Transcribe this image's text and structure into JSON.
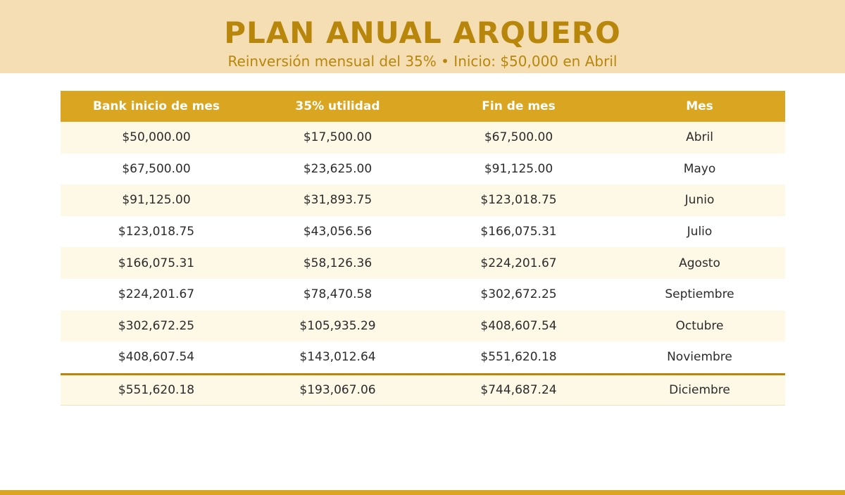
{
  "header": {
    "title": "PLAN ANUAL ARQUERO",
    "subtitle": "Reinversión mensual del 35%  •  Inicio: $50,000 en Abril"
  },
  "colors": {
    "header_bg": "#f5deb3",
    "accent": "#daa520",
    "accent_dark": "#b8860b",
    "row_alt": "#fef8e6"
  },
  "table": {
    "columns": [
      "Bank inicio de mes",
      "35% utilidad",
      "Fin de mes",
      "Mes"
    ],
    "rows": [
      [
        "$50,000.00",
        "$17,500.00",
        "$67,500.00",
        "Abril"
      ],
      [
        "$67,500.00",
        "$23,625.00",
        "$91,125.00",
        "Mayo"
      ],
      [
        "$91,125.00",
        "$31,893.75",
        "$123,018.75",
        "Junio"
      ],
      [
        "$123,018.75",
        "$43,056.56",
        "$166,075.31",
        "Julio"
      ],
      [
        "$166,075.31",
        "$58,126.36",
        "$224,201.67",
        "Agosto"
      ],
      [
        "$224,201.67",
        "$78,470.58",
        "$302,672.25",
        "Septiembre"
      ],
      [
        "$302,672.25",
        "$105,935.29",
        "$408,607.54",
        "Octubre"
      ],
      [
        "$408,607.54",
        "$143,012.64",
        "$551,620.18",
        "Noviembre"
      ],
      [
        "$551,620.18",
        "$193,067.06",
        "$744,687.24",
        "Diciembre"
      ]
    ]
  }
}
